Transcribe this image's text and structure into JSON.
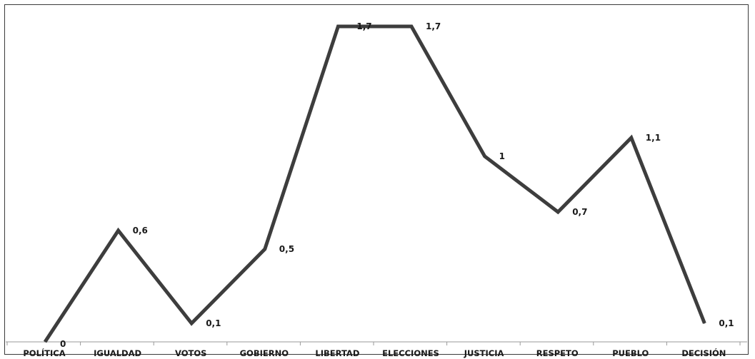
{
  "chart_data": {
    "type": "line",
    "categories": [
      "POLÍTICA",
      "IGUALDAD",
      "VOTOS",
      "GOBIERNO",
      "LIBERTAD",
      "ELECCIONES",
      "JUSTICIA",
      "RESPETO",
      "PUEBLO",
      "DECISIÓN"
    ],
    "values": [
      0,
      0.6,
      0.1,
      0.5,
      1.7,
      1.7,
      1,
      0.7,
      1.1,
      0.1
    ],
    "value_labels": [
      "0",
      "0,6",
      "0,1",
      "0,5",
      "1,7",
      "1,7",
      "1",
      "0,7",
      "1,1",
      "0,1"
    ],
    "ylim": [
      0,
      1.8
    ],
    "grid": false,
    "legend": "none",
    "line_color": "#3d3d3d"
  }
}
